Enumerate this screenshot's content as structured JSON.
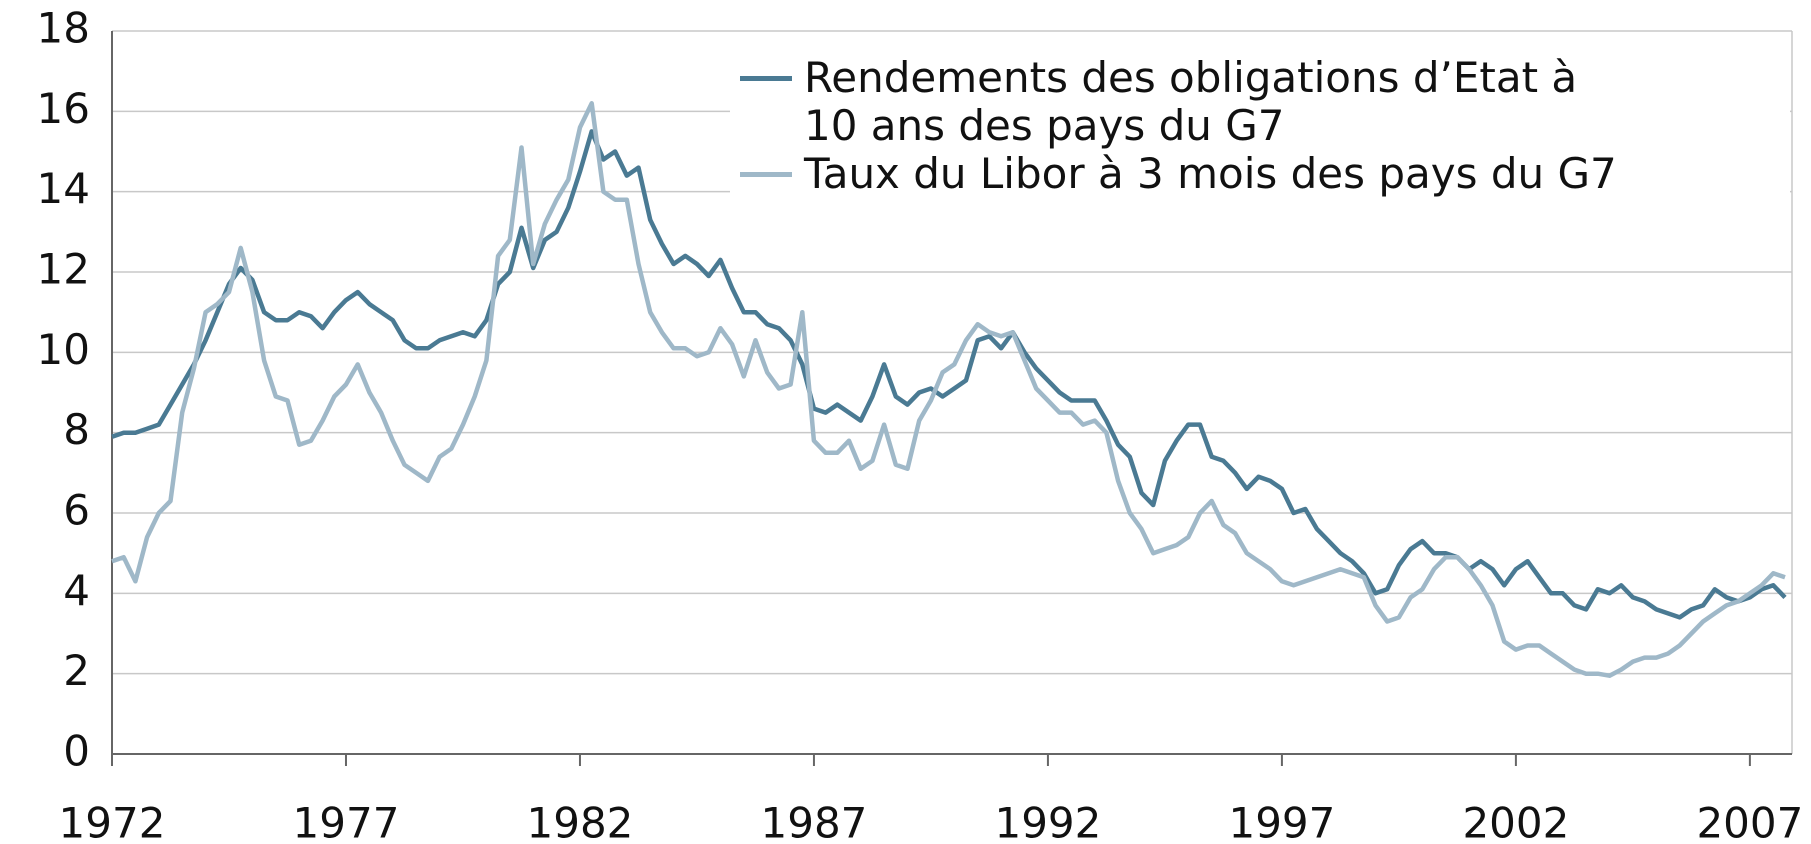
{
  "chart_data": {
    "type": "line",
    "x": [
      1972,
      1972.25,
      1972.5,
      1972.75,
      1973,
      1973.25,
      1973.5,
      1973.75,
      1974,
      1974.25,
      1974.5,
      1974.75,
      1975,
      1975.25,
      1975.5,
      1975.75,
      1976,
      1976.25,
      1976.5,
      1976.75,
      1977,
      1977.25,
      1977.5,
      1977.75,
      1978,
      1978.25,
      1978.5,
      1978.75,
      1979,
      1979.25,
      1979.5,
      1979.75,
      1980,
      1980.25,
      1980.5,
      1980.75,
      1981,
      1981.25,
      1981.5,
      1981.75,
      1982,
      1982.25,
      1982.5,
      1982.75,
      1983,
      1983.25,
      1983.5,
      1983.75,
      1984,
      1984.25,
      1984.5,
      1984.75,
      1985,
      1985.25,
      1985.5,
      1985.75,
      1986,
      1986.25,
      1986.5,
      1986.75,
      1987,
      1987.25,
      1987.5,
      1987.75,
      1988,
      1988.25,
      1988.5,
      1988.75,
      1989,
      1989.25,
      1989.5,
      1989.75,
      1990,
      1990.25,
      1990.5,
      1990.75,
      1991,
      1991.25,
      1991.5,
      1991.75,
      1992,
      1992.25,
      1992.5,
      1992.75,
      1993,
      1993.25,
      1993.5,
      1993.75,
      1994,
      1994.25,
      1994.5,
      1994.75,
      1995,
      1995.25,
      1995.5,
      1995.75,
      1996,
      1996.25,
      1996.5,
      1996.75,
      1997,
      1997.25,
      1997.5,
      1997.75,
      1998,
      1998.25,
      1998.5,
      1998.75,
      1999,
      1999.25,
      1999.5,
      1999.75,
      2000,
      2000.25,
      2000.5,
      2000.75,
      2001,
      2001.25,
      2001.5,
      2001.75,
      2002,
      2002.25,
      2002.5,
      2002.75,
      2003,
      2003.25,
      2003.5,
      2003.75,
      2004,
      2004.25,
      2004.5,
      2004.75,
      2005,
      2005.25,
      2005.5,
      2005.75,
      2006,
      2006.25,
      2006.5,
      2006.75,
      2007,
      2007.25,
      2007.5,
      2007.75
    ],
    "series": [
      {
        "name": "Rendements des obligations d’Etat à 10 ans des pays du G7",
        "color": "#4a7a93",
        "values": [
          7.9,
          8.0,
          8.0,
          8.1,
          8.2,
          8.7,
          9.2,
          9.7,
          10.3,
          11.0,
          11.7,
          12.1,
          11.8,
          11.0,
          10.8,
          10.8,
          11.0,
          10.9,
          10.6,
          11.0,
          11.3,
          11.5,
          11.2,
          11.0,
          10.8,
          10.3,
          10.1,
          10.1,
          10.3,
          10.4,
          10.5,
          10.4,
          10.8,
          11.7,
          12.0,
          13.1,
          12.1,
          12.8,
          13.0,
          13.6,
          14.5,
          15.5,
          14.8,
          15.0,
          14.4,
          14.6,
          13.3,
          12.7,
          12.2,
          12.4,
          12.2,
          11.9,
          12.3,
          11.6,
          11.0,
          11.0,
          10.7,
          10.6,
          10.3,
          9.7,
          8.6,
          8.5,
          8.7,
          8.5,
          8.3,
          8.9,
          9.7,
          8.9,
          8.7,
          9.0,
          9.1,
          8.9,
          9.1,
          9.3,
          10.3,
          10.4,
          10.1,
          10.5,
          10.0,
          9.6,
          9.3,
          9.0,
          8.8,
          8.8,
          8.8,
          8.3,
          7.7,
          7.4,
          6.5,
          6.2,
          7.3,
          7.8,
          8.2,
          8.2,
          7.4,
          7.3,
          7.0,
          6.6,
          6.9,
          6.8,
          6.6,
          6.0,
          6.1,
          5.6,
          5.3,
          5.0,
          4.8,
          4.5,
          4.0,
          4.1,
          4.7,
          5.1,
          5.3,
          5.0,
          5.0,
          4.9,
          4.6,
          4.8,
          4.6,
          4.2,
          4.6,
          4.8,
          4.4,
          4.0,
          4.0,
          3.7,
          3.6,
          4.1,
          4.0,
          4.2,
          3.9,
          3.8,
          3.6,
          3.5,
          3.4,
          3.6,
          3.7,
          4.1,
          3.9,
          3.8,
          3.9,
          4.1,
          4.2,
          3.9
        ]
      },
      {
        "name": "Taux du Libor à 3 mois des pays du G7",
        "color": "#9fb8c8",
        "values": [
          4.8,
          4.9,
          4.3,
          5.4,
          6.0,
          6.3,
          8.5,
          9.6,
          11.0,
          11.2,
          11.5,
          12.6,
          11.5,
          9.8,
          8.9,
          8.8,
          7.7,
          7.8,
          8.3,
          8.9,
          9.2,
          9.7,
          9.0,
          8.5,
          7.8,
          7.2,
          7.0,
          6.8,
          7.4,
          7.6,
          8.2,
          8.9,
          9.8,
          12.4,
          12.8,
          15.1,
          12.2,
          13.2,
          13.8,
          14.3,
          15.6,
          16.2,
          14.0,
          13.8,
          13.8,
          12.2,
          11.0,
          10.5,
          10.1,
          10.1,
          9.9,
          10.0,
          10.6,
          10.2,
          9.4,
          10.3,
          9.5,
          9.1,
          9.2,
          11.0,
          7.8,
          7.5,
          7.5,
          7.8,
          7.1,
          7.3,
          8.2,
          7.2,
          7.1,
          8.3,
          8.8,
          9.5,
          9.7,
          10.3,
          10.7,
          10.5,
          10.4,
          10.5,
          9.8,
          9.1,
          8.8,
          8.5,
          8.5,
          8.2,
          8.3,
          8.0,
          6.8,
          6.0,
          5.6,
          5.0,
          5.1,
          5.2,
          5.4,
          6.0,
          6.3,
          5.7,
          5.5,
          5.0,
          4.8,
          4.6,
          4.3,
          4.2,
          4.3,
          4.4,
          4.5,
          4.6,
          4.5,
          4.4,
          3.7,
          3.3,
          3.4,
          3.9,
          4.1,
          4.6,
          4.9,
          4.9,
          4.6,
          4.2,
          3.7,
          2.8,
          2.6,
          2.7,
          2.7,
          2.5,
          2.3,
          2.1,
          2.0,
          2.0,
          1.95,
          2.1,
          2.3,
          2.4,
          2.4,
          2.5,
          2.7,
          3.0,
          3.3,
          3.5,
          3.7,
          3.8,
          4.0,
          4.2,
          4.5,
          4.4
        ]
      }
    ],
    "xlim": [
      1972,
      2007.9
    ],
    "xticks": [
      1972,
      1977,
      1982,
      1987,
      1992,
      1997,
      2002,
      2007
    ],
    "ylim": [
      0,
      18
    ],
    "yticks": [
      0,
      2,
      4,
      6,
      8,
      10,
      12,
      14,
      16,
      18
    ],
    "grid": true
  }
}
